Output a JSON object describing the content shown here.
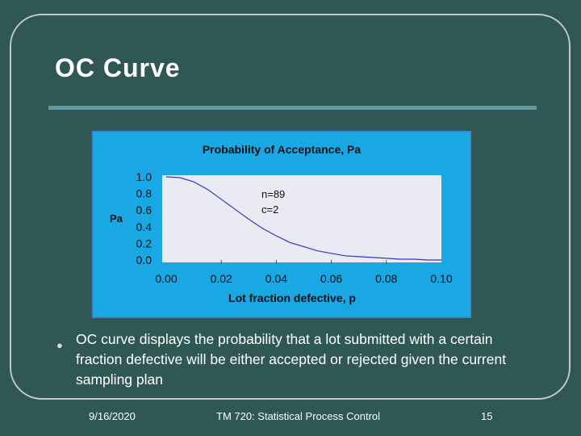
{
  "slide": {
    "title": "OC Curve",
    "bullet": "OC curve displays the probability that a lot submitted with a certain fraction defective will be either accepted or rejected given the current sampling plan",
    "footer": {
      "date": "9/16/2020",
      "course": "TM 720: Statistical Process Control",
      "page": "15"
    }
  },
  "colors": {
    "background": "#2f5753",
    "rule": "#5b9aa0",
    "chart_bg": "#1aa8e4",
    "plot_bg": "#e9eaf2",
    "curve": "#3a35c8"
  },
  "chart_data": {
    "type": "line",
    "title": "Probability of Acceptance, Pa",
    "xlabel": "Lot fraction defective, p",
    "ylabel": "Pa",
    "xlim": [
      0,
      0.1
    ],
    "ylim": [
      0,
      1
    ],
    "x_ticks": [
      "0.00",
      "0.02",
      "0.04",
      "0.06",
      "0.08",
      "0.10"
    ],
    "y_ticks": [
      "1.0",
      "0.8",
      "0.6",
      "0.4",
      "0.2",
      "0.0"
    ],
    "annotations": [
      "n=89",
      "c=2"
    ],
    "grid": false,
    "series": [
      {
        "x": [
          0,
          0.005,
          0.01,
          0.015,
          0.02,
          0.025,
          0.03,
          0.035,
          0.04,
          0.045,
          0.05,
          0.055,
          0.06,
          0.065,
          0.07,
          0.075,
          0.08,
          0.085,
          0.09,
          0.095,
          0.1
        ],
        "values": [
          1.0,
          0.99,
          0.94,
          0.85,
          0.73,
          0.61,
          0.49,
          0.38,
          0.29,
          0.21,
          0.16,
          0.11,
          0.08,
          0.05,
          0.04,
          0.03,
          0.02,
          0.01,
          0.01,
          0.0,
          0.0
        ]
      }
    ]
  }
}
